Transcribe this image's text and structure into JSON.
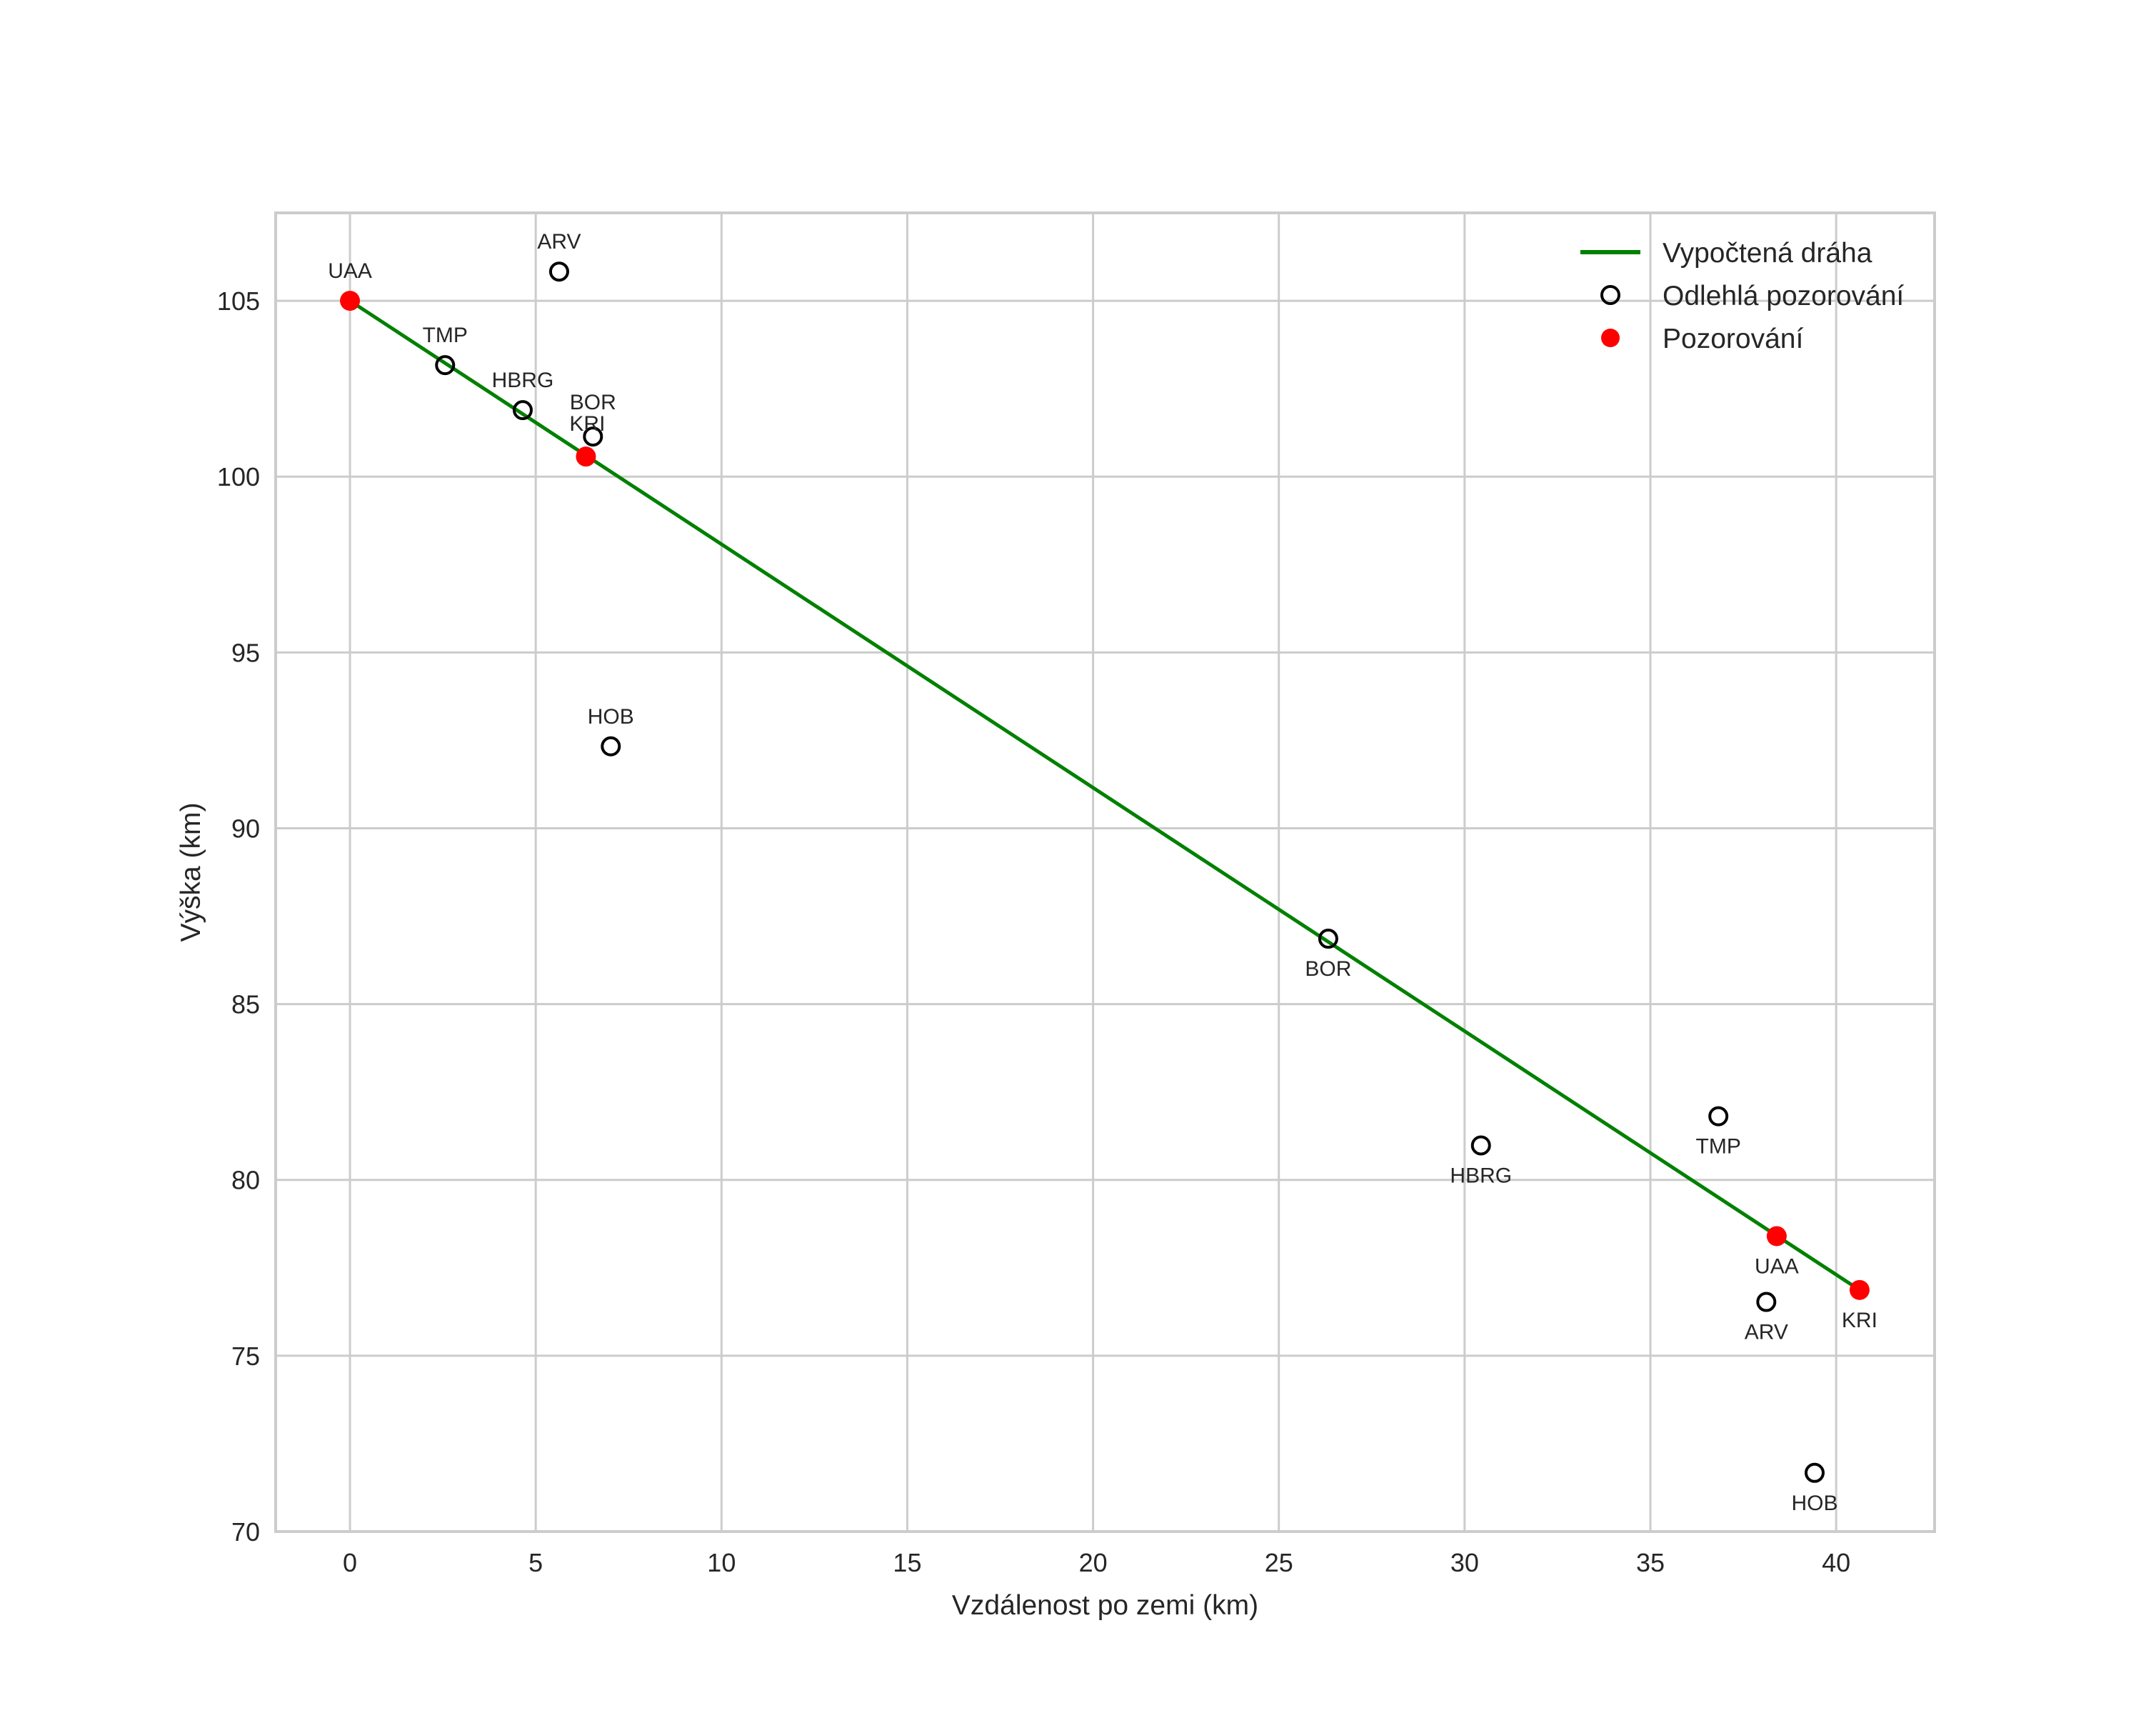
{
  "chart_data": {
    "type": "scatter",
    "title": "",
    "xlabel": "Vzdálenost po zemi (km)",
    "ylabel": "Výška (km)",
    "xlim": [
      -2.0,
      42.65
    ],
    "ylim": [
      70,
      107.5
    ],
    "xticks": [
      0,
      5,
      10,
      15,
      20,
      25,
      30,
      35,
      40
    ],
    "yticks": [
      70,
      75,
      80,
      85,
      90,
      95,
      100,
      105
    ],
    "grid": true,
    "legend_position": "upper right",
    "colors": {
      "line": "#008000",
      "observation": "#ff0000",
      "outlier_edge": "#000000",
      "grid": "#cccccc",
      "text": "#262626"
    },
    "series": [
      {
        "name": "Vypočtená dráha",
        "type": "line",
        "x": [
          0.0,
          40.63
        ],
        "y": [
          105.0,
          76.87
        ]
      },
      {
        "name": "Odlehlá pozorování",
        "type": "scatter",
        "marker": "open-circle",
        "points": [
          {
            "label": "ARV",
            "x": 5.63,
            "y": 105.83,
            "label_pos": "above"
          },
          {
            "label": "TMP",
            "x": 2.56,
            "y": 103.17,
            "label_pos": "above"
          },
          {
            "label": "HBRG",
            "x": 4.65,
            "y": 101.89,
            "label_pos": "above"
          },
          {
            "label": "BOR",
            "x": 6.54,
            "y": 101.14,
            "label_pos": "above2"
          },
          {
            "label": "HOB",
            "x": 7.02,
            "y": 92.33,
            "label_pos": "above"
          },
          {
            "label": "BOR",
            "x": 26.33,
            "y": 86.86,
            "label_pos": "below"
          },
          {
            "label": "HBRG",
            "x": 30.44,
            "y": 80.98,
            "label_pos": "below"
          },
          {
            "label": "TMP",
            "x": 36.83,
            "y": 81.81,
            "label_pos": "below"
          },
          {
            "label": "ARV",
            "x": 38.12,
            "y": 76.53,
            "label_pos": "below"
          },
          {
            "label": "HOB",
            "x": 39.42,
            "y": 71.67,
            "label_pos": "below"
          }
        ]
      },
      {
        "name": "Pozorování",
        "type": "scatter",
        "marker": "filled-circle",
        "points": [
          {
            "label": "UAA",
            "x": 0.0,
            "y": 105.0,
            "label_pos": "above"
          },
          {
            "label": "KRI",
            "x": 6.35,
            "y": 100.57,
            "label_pos": "above"
          },
          {
            "label": "UAA",
            "x": 38.4,
            "y": 78.4,
            "label_pos": "below"
          },
          {
            "label": "KRI",
            "x": 40.63,
            "y": 76.87,
            "label_pos": "below"
          }
        ]
      }
    ]
  }
}
